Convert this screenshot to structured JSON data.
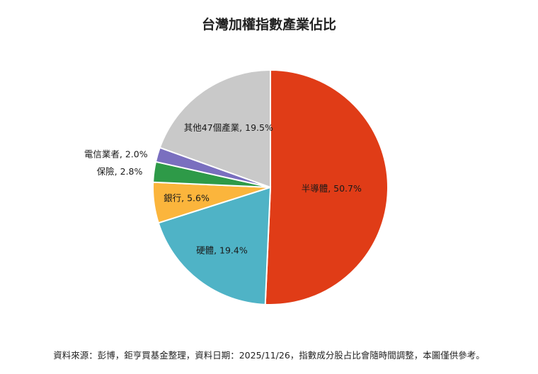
{
  "chart_data": {
    "type": "pie",
    "title": "台灣加權指數產業佔比",
    "start_angle_deg": 0,
    "direction": "clockwise",
    "slices": [
      {
        "label": "半導體",
        "value": 50.7,
        "display": "半導體, 50.7%",
        "color": "#e03c17"
      },
      {
        "label": "硬體",
        "value": 19.4,
        "display": "硬體, 19.4%",
        "color": "#4fb3c6"
      },
      {
        "label": "銀行",
        "value": 5.6,
        "display": "銀行, 5.6%",
        "color": "#fbb53c"
      },
      {
        "label": "保險",
        "value": 2.8,
        "display": "保險, 2.8%",
        "color": "#2e9a48"
      },
      {
        "label": "電信業者",
        "value": 2.0,
        "display": "電信業者, 2.0%",
        "color": "#7a6fbf"
      },
      {
        "label": "其他47個產業",
        "value": 19.5,
        "display": "其他47個產業, 19.5%",
        "color": "#c9c9c9"
      }
    ]
  },
  "footer": {
    "source": "資料來源：彭博，鉅亨買基金整理，資料日期：2025/11/26，指數成分股占比會隨時間調整，本圖僅供參考。"
  }
}
